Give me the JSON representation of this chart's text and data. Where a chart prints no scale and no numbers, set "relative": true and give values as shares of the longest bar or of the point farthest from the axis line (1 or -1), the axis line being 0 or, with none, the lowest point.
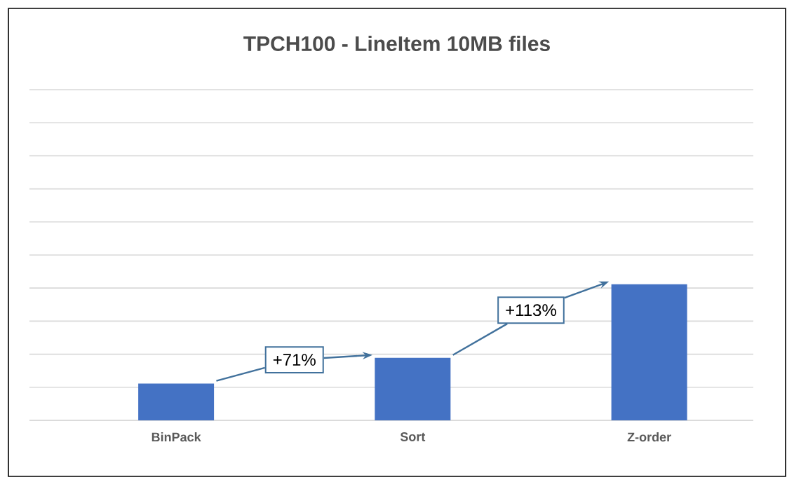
{
  "chart_data": {
    "type": "bar",
    "title": "TPCH100 - LineItem 10MB files",
    "categories": [
      "BinPack",
      "Sort",
      "Z-order"
    ],
    "values": [
      0.27,
      0.46,
      1
    ],
    "color": "#4472c4",
    "relative": true,
    "grid": true,
    "annotations": [
      "+71%",
      "+113%"
    ]
  }
}
